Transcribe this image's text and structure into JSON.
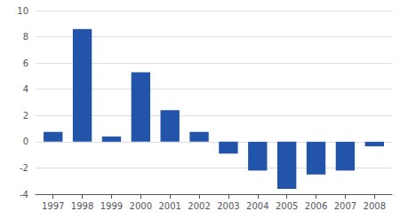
{
  "chart_data": {
    "type": "bar",
    "x": [
      1997,
      1998,
      1999,
      2000,
      2001,
      2002,
      2003,
      2004,
      2005,
      2006,
      2007,
      2008
    ],
    "values": [
      0.75,
      8.6,
      0.4,
      5.3,
      2.4,
      0.75,
      -0.9,
      -2.2,
      -3.6,
      -2.5,
      -2.2,
      -0.35
    ],
    "color": "#2255AA",
    "xlim": [
      1996.4,
      2008.6
    ],
    "xticks": [
      1997,
      1998,
      1999,
      2000,
      2001,
      2002,
      2003,
      2004,
      2005,
      2006,
      2007,
      2008
    ],
    "ylim": [
      -4,
      10
    ],
    "yticks": [
      -4,
      -2,
      0,
      2,
      4,
      6,
      8,
      10
    ],
    "grid": true
  }
}
